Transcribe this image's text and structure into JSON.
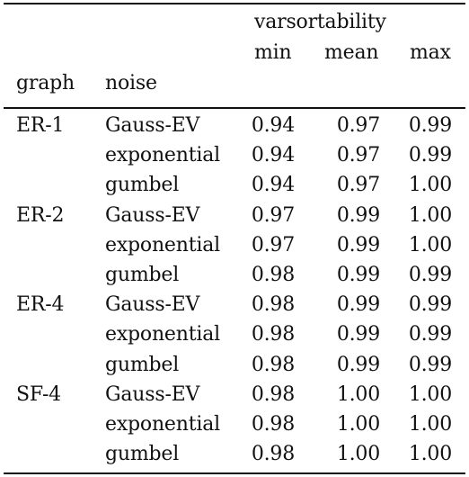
{
  "header": {
    "group_label": "varsortability",
    "sub_columns": [
      "min",
      "mean",
      "max"
    ],
    "graph_label": "graph",
    "noise_label": "noise"
  },
  "rows": [
    {
      "graph": "ER-1",
      "noise": "Gauss-EV",
      "min": "0.94",
      "mean": "0.97",
      "max": "0.99"
    },
    {
      "graph": "",
      "noise": "exponential",
      "min": "0.94",
      "mean": "0.97",
      "max": "0.99"
    },
    {
      "graph": "",
      "noise": "gumbel",
      "min": "0.94",
      "mean": "0.97",
      "max": "1.00"
    },
    {
      "graph": "ER-2",
      "noise": "Gauss-EV",
      "min": "0.97",
      "mean": "0.99",
      "max": "1.00"
    },
    {
      "graph": "",
      "noise": "exponential",
      "min": "0.97",
      "mean": "0.99",
      "max": "1.00"
    },
    {
      "graph": "",
      "noise": "gumbel",
      "min": "0.98",
      "mean": "0.99",
      "max": "0.99"
    },
    {
      "graph": "ER-4",
      "noise": "Gauss-EV",
      "min": "0.98",
      "mean": "0.99",
      "max": "0.99"
    },
    {
      "graph": "",
      "noise": "exponential",
      "min": "0.98",
      "mean": "0.99",
      "max": "0.99"
    },
    {
      "graph": "",
      "noise": "gumbel",
      "min": "0.98",
      "mean": "0.99",
      "max": "0.99"
    },
    {
      "graph": "SF-4",
      "noise": "Gauss-EV",
      "min": "0.98",
      "mean": "1.00",
      "max": "1.00"
    },
    {
      "graph": "",
      "noise": "exponential",
      "min": "0.98",
      "mean": "1.00",
      "max": "1.00"
    },
    {
      "graph": "",
      "noise": "gumbel",
      "min": "0.98",
      "mean": "1.00",
      "max": "1.00"
    }
  ]
}
